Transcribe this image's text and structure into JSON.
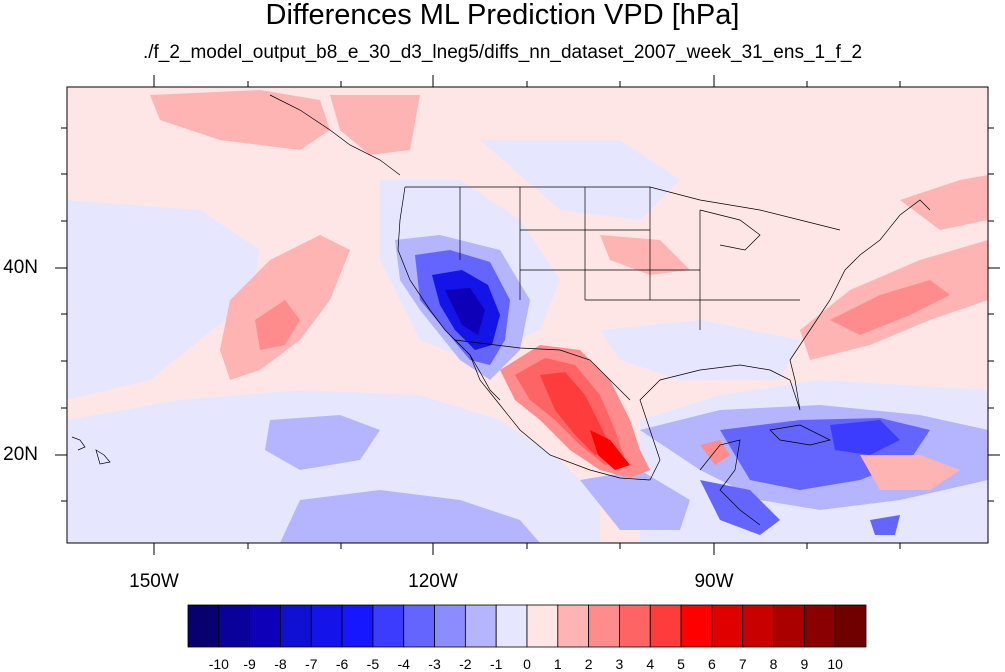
{
  "title": "Differences ML Prediction VPD [hPa]",
  "subtitle": "./f_2_model_output_b8_e_30_d3_lneg5/diffs_nn_dataset_2007_week_31_ens_1_f_2",
  "map": {
    "lon_range": [
      -160,
      -61
    ],
    "lat_range": [
      11,
      60
    ],
    "lat_labels": [
      {
        "value": 40,
        "text": "40N"
      },
      {
        "value": 20,
        "text": "20N"
      }
    ],
    "lon_labels": [
      {
        "value": -150,
        "text": "150W"
      },
      {
        "value": -120,
        "text": "120W"
      },
      {
        "value": -90,
        "text": "90W"
      }
    ]
  },
  "colorbar": {
    "labels": [
      "-10",
      "-9",
      "-8",
      "-7",
      "-6",
      "-5",
      "-4",
      "-3",
      "-2",
      "-1",
      "0",
      "1",
      "2",
      "3",
      "4",
      "5",
      "6",
      "7",
      "8",
      "9",
      "10"
    ],
    "colors": [
      "#08006e",
      "#0a009a",
      "#0d00b8",
      "#1010d2",
      "#1414e8",
      "#1616ff",
      "#3c3cff",
      "#6464ff",
      "#8c8cff",
      "#b4b4ff",
      "#e6e6ff",
      "#ffe6e6",
      "#ffb4b4",
      "#ff8c8c",
      "#ff6464",
      "#ff3c3c",
      "#ff0000",
      "#e00000",
      "#c80000",
      "#aa0000",
      "#8a0000",
      "#6e0000"
    ]
  }
}
